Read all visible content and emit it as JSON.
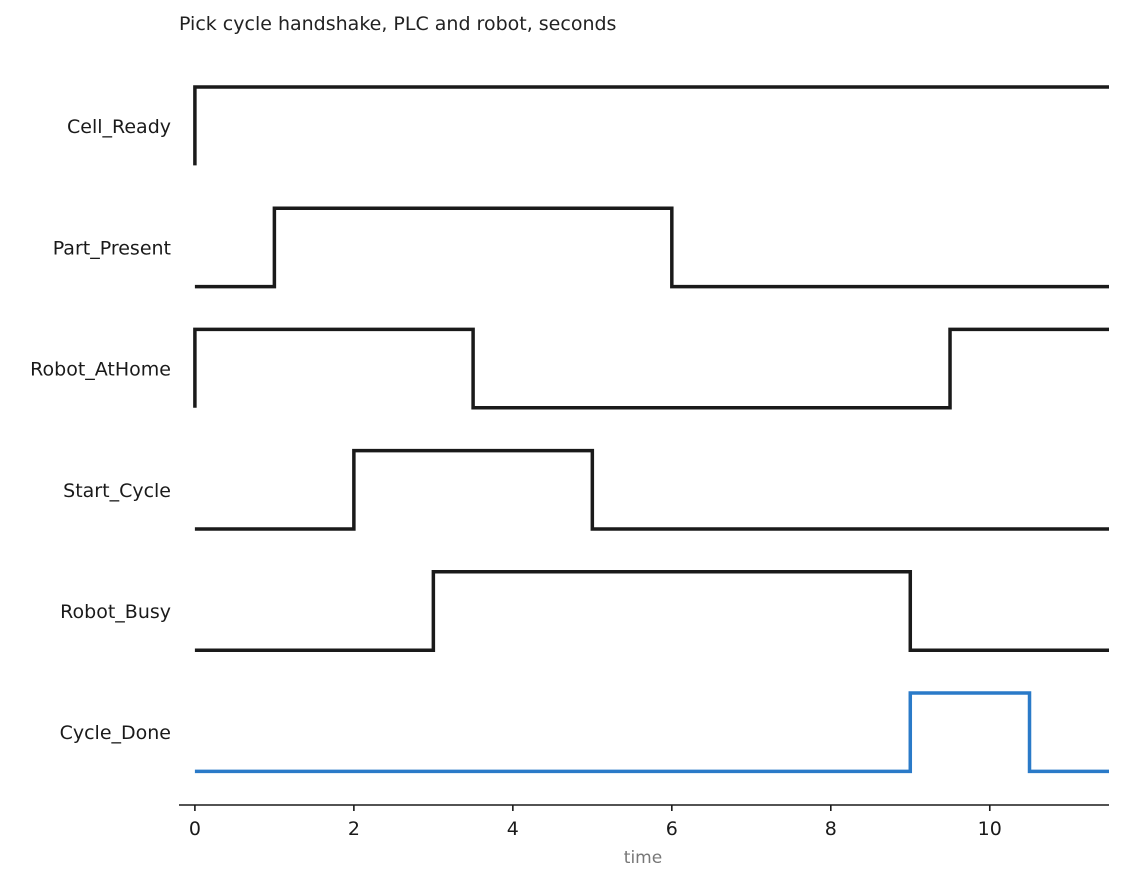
{
  "chart_data": {
    "type": "timing",
    "title": "Pick cycle handshake, PLC and robot, seconds",
    "xlabel": "time",
    "ylabel": "",
    "xlim": [
      -0.2,
      11.5
    ],
    "xticks": [
      0,
      2,
      4,
      6,
      8,
      10
    ],
    "grid": false,
    "legend": "none",
    "signals": [
      {
        "name": "Cell_Ready",
        "color": "#1a1a1a",
        "initial": 0,
        "transitions": [
          {
            "t": 0,
            "v": 1
          }
        ]
      },
      {
        "name": "Part_Present",
        "color": "#1a1a1a",
        "initial": 0,
        "transitions": [
          {
            "t": 1,
            "v": 1
          },
          {
            "t": 6,
            "v": 0
          }
        ]
      },
      {
        "name": "Robot_AtHome",
        "color": "#1a1a1a",
        "initial": 0,
        "transitions": [
          {
            "t": 0,
            "v": 1
          },
          {
            "t": 3.5,
            "v": 0
          },
          {
            "t": 9.5,
            "v": 1
          }
        ]
      },
      {
        "name": "Start_Cycle",
        "color": "#1a1a1a",
        "initial": 0,
        "transitions": [
          {
            "t": 2,
            "v": 1
          },
          {
            "t": 5,
            "v": 0
          }
        ]
      },
      {
        "name": "Robot_Busy",
        "color": "#1a1a1a",
        "initial": 0,
        "transitions": [
          {
            "t": 3,
            "v": 1
          },
          {
            "t": 9,
            "v": 0
          }
        ]
      },
      {
        "name": "Cycle_Done",
        "color": "#2a7ac8",
        "initial": 0,
        "transitions": [
          {
            "t": 9,
            "v": 1
          },
          {
            "t": 10.5,
            "v": 0
          }
        ]
      }
    ]
  }
}
